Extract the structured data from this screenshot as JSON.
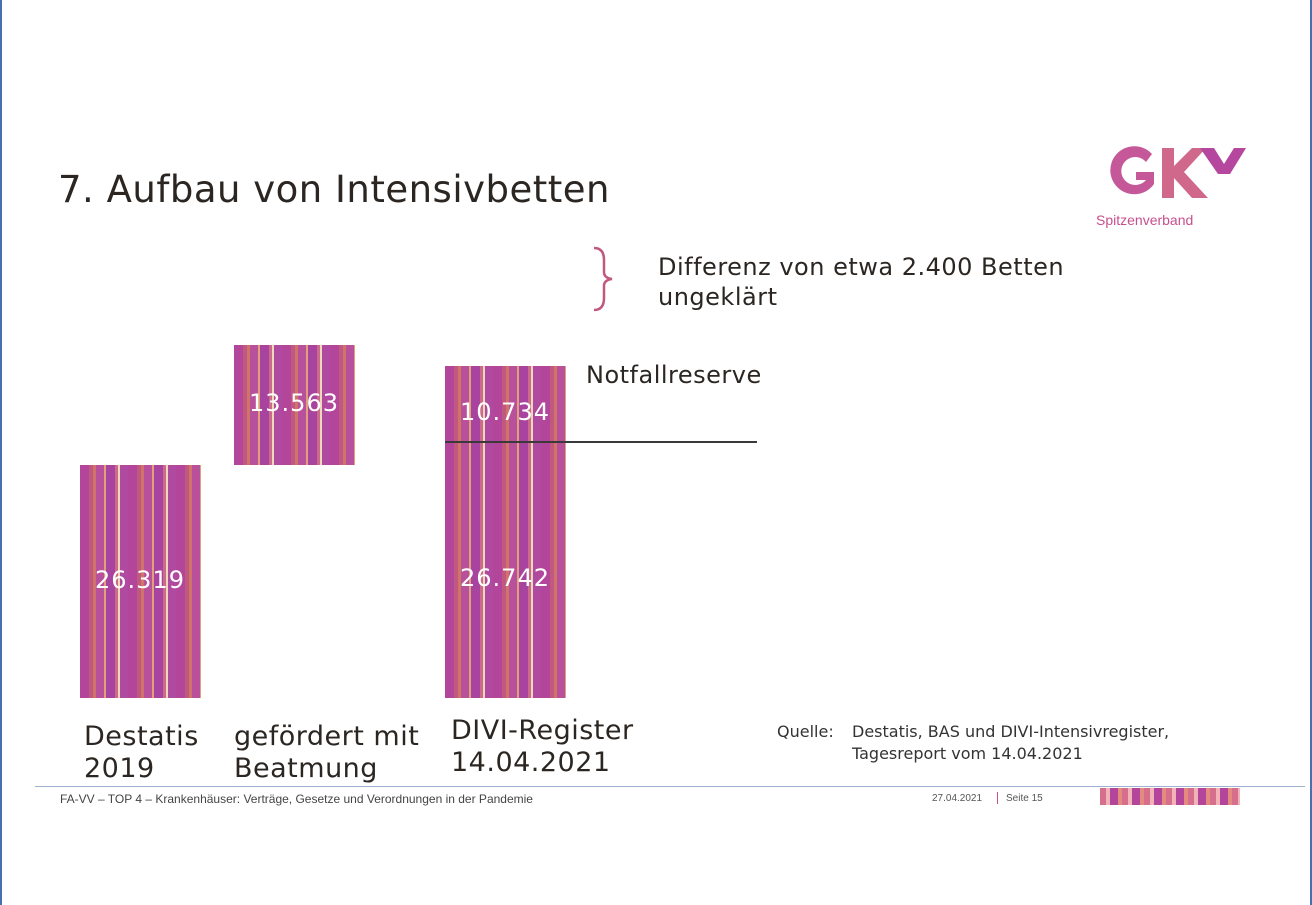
{
  "title": "7. Aufbau von Intensivbetten",
  "logo": {
    "text": "GKV",
    "subtitle": "Spitzenverband"
  },
  "chart_data": {
    "type": "bar",
    "stacked": true,
    "categories": [
      "Destatis 2019",
      "gefördert mit Beatmung",
      "DIVI-Register 14.04.2021"
    ],
    "category_lines": [
      [
        "Destatis",
        "2019"
      ],
      [
        "gefördert mit",
        "Beatmung"
      ],
      [
        "DIVI-Register",
        "14.04.2021"
      ]
    ],
    "series": [
      {
        "name": "Intensivbetten",
        "values": [
          26319,
          null,
          26742
        ],
        "labels": [
          "26.319",
          "",
          "26.742"
        ]
      },
      {
        "name": "gefördert mit Beatmung",
        "values": [
          null,
          13563,
          null
        ],
        "base": [
          null,
          26319,
          null
        ],
        "labels": [
          "",
          "13.563",
          ""
        ]
      },
      {
        "name": "Notfallreserve",
        "values": [
          null,
          null,
          10734
        ],
        "labels": [
          "",
          "",
          "10.734"
        ]
      }
    ],
    "annotations": {
      "notfallreserve": "Notfallreserve",
      "difference_line1": "Differenz von etwa 2.400 Betten",
      "difference_line2": "ungeklärt"
    }
  },
  "source": {
    "label": "Quelle:",
    "line1": "Destatis, BAS und DIVI-Intensivregister,",
    "line2": "Tagesreport vom 14.04.2021"
  },
  "footer": {
    "text": "FA-VV – TOP 4 – Krankenhäuser: Verträge, Gesetze und Verordnungen in der Pandemie",
    "date": "27.04.2021",
    "page": "Seite 15"
  }
}
